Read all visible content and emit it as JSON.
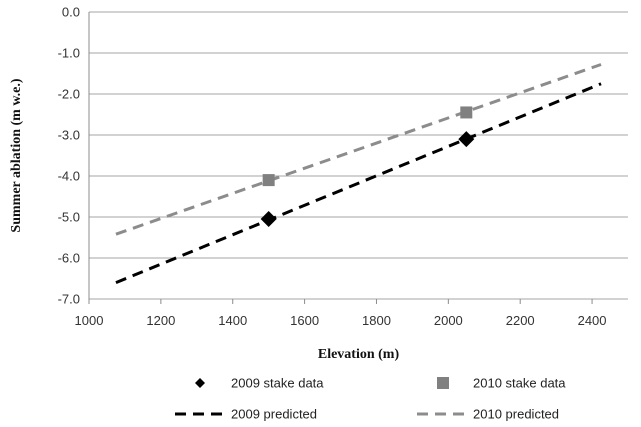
{
  "chart_data": {
    "type": "scatter",
    "title": "",
    "xlabel": "Elevation (m)",
    "ylabel": "Summer ablation (m w.e.)",
    "xlim": [
      1000,
      2500
    ],
    "ylim": [
      -7.0,
      0.0
    ],
    "xticks": [
      "1000",
      "1200",
      "1400",
      "1600",
      "1800",
      "2000",
      "2200",
      "2400"
    ],
    "yticks": [
      "0.0",
      "-1.0",
      "-2.0",
      "-3.0",
      "-4.0",
      "-5.0",
      "-6.0",
      "-7.0"
    ],
    "grid": "horizontal",
    "legend_position": "bottom",
    "series": [
      {
        "name": "2009 stake data",
        "kind": "points",
        "marker": "diamond",
        "color": "#000000",
        "x": [
          1500,
          2050
        ],
        "y": [
          -5.05,
          -3.1
        ]
      },
      {
        "name": "2010 stake data",
        "kind": "points",
        "marker": "square",
        "color": "#808080",
        "x": [
          1500,
          2050
        ],
        "y": [
          -4.1,
          -2.45
        ]
      },
      {
        "name": "2009 predicted",
        "kind": "line",
        "style": "dashed",
        "color": "#000000",
        "x": [
          1075,
          2425
        ],
        "y": [
          -6.6,
          -1.75
        ]
      },
      {
        "name": "2010 predicted",
        "kind": "line",
        "style": "dashed",
        "color": "#8c8c8c",
        "x": [
          1075,
          2425
        ],
        "y": [
          -5.42,
          -1.28
        ]
      }
    ]
  }
}
